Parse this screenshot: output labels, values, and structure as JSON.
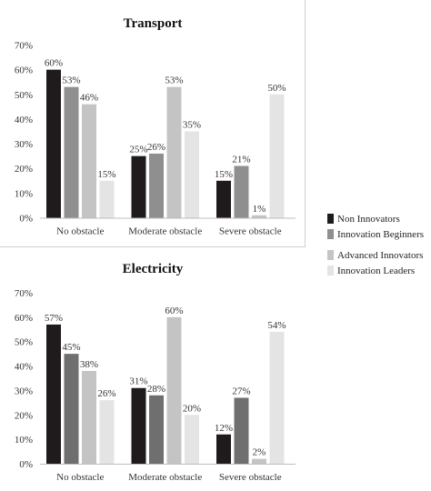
{
  "chart_data": [
    {
      "type": "bar",
      "title": "Transport",
      "categories": [
        "No obstacle",
        "Moderate obstacle",
        "Severe obstacle"
      ],
      "series": [
        {
          "name": "Non Innovators",
          "values": [
            60,
            25,
            15
          ]
        },
        {
          "name": "Innovation Beginners",
          "values": [
            53,
            26,
            21
          ]
        },
        {
          "name": "Advanced Innovators",
          "values": [
            46,
            53,
            1
          ]
        },
        {
          "name": "Innovation Leaders",
          "values": [
            15,
            35,
            50
          ]
        }
      ],
      "yticks": [
        "0%",
        "10%",
        "20%",
        "30%",
        "40%",
        "50%",
        "60%",
        "70%"
      ],
      "ylim": [
        0,
        70
      ],
      "unit": "%",
      "grid": false,
      "legend": "right"
    },
    {
      "type": "bar",
      "title": "Electricity",
      "categories": [
        "No obstacle",
        "Moderate obstacle",
        "Severe obstacle"
      ],
      "series": [
        {
          "name": "Non Innovators",
          "values": [
            57,
            31,
            12
          ]
        },
        {
          "name": "Innovation Beginners",
          "values": [
            45,
            28,
            27
          ]
        },
        {
          "name": "Advanced Innovators",
          "values": [
            38,
            60,
            2
          ]
        },
        {
          "name": "Innovation Leaders",
          "values": [
            26,
            20,
            54
          ]
        }
      ],
      "yticks": [
        "0%",
        "10%",
        "20%",
        "30%",
        "40%",
        "50%",
        "60%",
        "70%"
      ],
      "ylim": [
        0,
        70
      ],
      "unit": "%",
      "grid": false,
      "legend": "right"
    }
  ],
  "series_colors": {
    "transport": [
      "#1f1b1c",
      "#8f8f8f",
      "#c4c4c4",
      "#e4e4e4"
    ],
    "electricity": [
      "#1f1b1c",
      "#6f6f6f",
      "#c4c4c4",
      "#e4e4e4"
    ]
  },
  "legend": {
    "items": [
      {
        "label": "Non Innovators",
        "color": "#1f1b1c"
      },
      {
        "label": "Innovation Beginners",
        "color": "#8f8f8f"
      },
      {
        "label": "Advanced Innovators",
        "color": "#c4c4c4"
      },
      {
        "label": "Innovation Leaders",
        "color": "#e4e4e4"
      }
    ]
  }
}
